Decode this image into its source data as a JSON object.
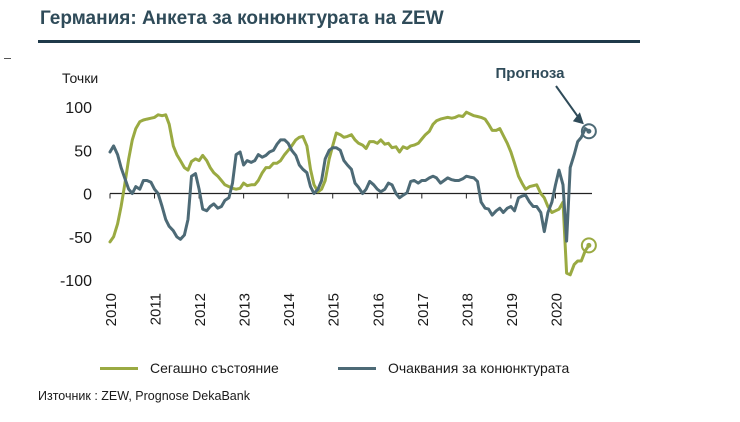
{
  "title": "Германия: Анкета за конюнктурата на ZEW",
  "source": "Източник : ZEW, Prognose DekaBank",
  "colors": {
    "current": "#9aaa42",
    "expectations": "#4d6a76",
    "title": "#2f4b59",
    "rule": "#1f3a4a"
  },
  "chart_data": {
    "type": "line",
    "ylabel": "Точки",
    "ylim": [
      -100,
      100
    ],
    "yticks": [
      100,
      50,
      0,
      -50,
      -100
    ],
    "ytick_labels": [
      "100",
      "50",
      "0",
      "-50",
      "-100"
    ],
    "xlim": [
      2010,
      2021
    ],
    "xticks": [
      2010,
      2011,
      2012,
      2013,
      2014,
      2015,
      2016,
      2017,
      2018,
      2019,
      2020
    ],
    "xtick_labels": [
      "2010",
      "2011",
      "2012",
      "2013",
      "2014",
      "2015",
      "2016",
      "2017",
      "2018",
      "2019",
      "2020"
    ],
    "annotation": "Прогноза",
    "legend": [
      "Сегашно състояние",
      "Очаквания за конюнктурата"
    ],
    "series": [
      {
        "name": "Сегашно състояние",
        "color": "#9aaa42",
        "x": [
          2010.0,
          2010.08,
          2010.17,
          2010.25,
          2010.33,
          2010.42,
          2010.5,
          2010.58,
          2010.67,
          2010.75,
          2010.83,
          2010.92,
          2011.0,
          2011.08,
          2011.17,
          2011.25,
          2011.33,
          2011.42,
          2011.5,
          2011.58,
          2011.67,
          2011.75,
          2011.83,
          2011.92,
          2012.0,
          2012.08,
          2012.17,
          2012.25,
          2012.33,
          2012.42,
          2012.5,
          2012.58,
          2012.67,
          2012.75,
          2012.83,
          2012.92,
          2013.0,
          2013.08,
          2013.17,
          2013.25,
          2013.33,
          2013.42,
          2013.5,
          2013.58,
          2013.67,
          2013.75,
          2013.83,
          2013.92,
          2014.0,
          2014.08,
          2014.17,
          2014.25,
          2014.33,
          2014.42,
          2014.5,
          2014.58,
          2014.67,
          2014.75,
          2014.83,
          2014.92,
          2015.0,
          2015.08,
          2015.17,
          2015.25,
          2015.33,
          2015.42,
          2015.5,
          2015.58,
          2015.67,
          2015.75,
          2015.83,
          2015.92,
          2016.0,
          2016.08,
          2016.17,
          2016.25,
          2016.33,
          2016.42,
          2016.5,
          2016.58,
          2016.67,
          2016.75,
          2016.83,
          2016.92,
          2017.0,
          2017.08,
          2017.17,
          2017.25,
          2017.33,
          2017.42,
          2017.5,
          2017.58,
          2017.67,
          2017.75,
          2017.83,
          2017.92,
          2018.0,
          2018.08,
          2018.17,
          2018.25,
          2018.33,
          2018.42,
          2018.5,
          2018.58,
          2018.67,
          2018.75,
          2018.83,
          2018.92,
          2019.0,
          2019.08,
          2019.17,
          2019.25,
          2019.33,
          2019.42,
          2019.5,
          2019.58,
          2019.67,
          2019.75,
          2019.83,
          2019.92,
          2020.0,
          2020.08,
          2020.17,
          2020.25,
          2020.33,
          2020.42,
          2020.5,
          2020.58,
          2020.67,
          2020.75
        ],
        "values": [
          -56,
          -50,
          -35,
          -15,
          10,
          40,
          62,
          75,
          83,
          85,
          86,
          87,
          88,
          91,
          90,
          91,
          80,
          55,
          45,
          38,
          30,
          27,
          37,
          40,
          38,
          44,
          38,
          30,
          24,
          20,
          15,
          10,
          8,
          6,
          5,
          6,
          12,
          9,
          10,
          10,
          15,
          24,
          30,
          30,
          35,
          35,
          38,
          45,
          50,
          55,
          62,
          65,
          66,
          55,
          28,
          10,
          2,
          5,
          15,
          40,
          55,
          70,
          68,
          65,
          66,
          68,
          62,
          58,
          56,
          52,
          60,
          60,
          58,
          62,
          57,
          58,
          53,
          54,
          48,
          54,
          52,
          55,
          56,
          58,
          63,
          68,
          72,
          80,
          84,
          86,
          87,
          88,
          87,
          88,
          90,
          89,
          94,
          92,
          90,
          89,
          88,
          86,
          80,
          73,
          73,
          75,
          67,
          58,
          48,
          35,
          20,
          12,
          5,
          8,
          9,
          10,
          0,
          -5,
          -15,
          -22,
          -20,
          -18,
          -10,
          -92,
          -94,
          -82,
          -78,
          -78,
          -66,
          -60
        ]
      },
      {
        "name": "Очаквания за конюнктурата",
        "color": "#4d6a76",
        "x": [
          2010.0,
          2010.08,
          2010.17,
          2010.25,
          2010.33,
          2010.42,
          2010.5,
          2010.58,
          2010.67,
          2010.75,
          2010.83,
          2010.92,
          2011.0,
          2011.08,
          2011.17,
          2011.25,
          2011.33,
          2011.42,
          2011.5,
          2011.58,
          2011.67,
          2011.75,
          2011.83,
          2011.92,
          2012.0,
          2012.08,
          2012.17,
          2012.25,
          2012.33,
          2012.42,
          2012.5,
          2012.58,
          2012.67,
          2012.75,
          2012.83,
          2012.92,
          2013.0,
          2013.08,
          2013.17,
          2013.25,
          2013.33,
          2013.42,
          2013.5,
          2013.58,
          2013.67,
          2013.75,
          2013.83,
          2013.92,
          2014.0,
          2014.08,
          2014.17,
          2014.25,
          2014.33,
          2014.42,
          2014.5,
          2014.58,
          2014.67,
          2014.75,
          2014.83,
          2014.92,
          2015.0,
          2015.08,
          2015.17,
          2015.25,
          2015.33,
          2015.42,
          2015.5,
          2015.58,
          2015.67,
          2015.75,
          2015.83,
          2015.92,
          2016.0,
          2016.08,
          2016.17,
          2016.25,
          2016.33,
          2016.42,
          2016.5,
          2016.58,
          2016.67,
          2016.75,
          2016.83,
          2016.92,
          2017.0,
          2017.08,
          2017.17,
          2017.25,
          2017.33,
          2017.42,
          2017.5,
          2017.58,
          2017.67,
          2017.75,
          2017.83,
          2017.92,
          2018.0,
          2018.08,
          2018.17,
          2018.25,
          2018.33,
          2018.42,
          2018.5,
          2018.58,
          2018.67,
          2018.75,
          2018.83,
          2018.92,
          2019.0,
          2019.08,
          2019.17,
          2019.25,
          2019.33,
          2019.42,
          2019.5,
          2019.58,
          2019.67,
          2019.75,
          2019.83,
          2019.92,
          2020.0,
          2020.08,
          2020.17,
          2020.25,
          2020.33,
          2020.42,
          2020.5,
          2020.58,
          2020.67,
          2020.75
        ],
        "values": [
          48,
          55,
          45,
          30,
          18,
          5,
          0,
          8,
          5,
          15,
          15,
          13,
          5,
          0,
          -15,
          -30,
          -38,
          -43,
          -50,
          -53,
          -48,
          -30,
          20,
          23,
          5,
          -18,
          -20,
          -15,
          -12,
          -17,
          -15,
          -8,
          -5,
          12,
          45,
          48,
          33,
          38,
          36,
          38,
          45,
          42,
          44,
          48,
          50,
          57,
          62,
          62,
          58,
          50,
          44,
          33,
          28,
          24,
          8,
          0,
          5,
          15,
          40,
          50,
          53,
          53,
          50,
          38,
          33,
          28,
          12,
          7,
          0,
          5,
          14,
          10,
          5,
          2,
          5,
          12,
          10,
          0,
          -5,
          -2,
          1,
          14,
          15,
          12,
          15,
          15,
          18,
          20,
          18,
          12,
          15,
          18,
          16,
          15,
          15,
          17,
          20,
          19,
          18,
          14,
          -10,
          -17,
          -18,
          -25,
          -20,
          -17,
          -22,
          -17,
          -15,
          -20,
          -5,
          -3,
          -2,
          -10,
          -15,
          -15,
          -22,
          -44,
          -22,
          -10,
          10,
          27,
          10,
          -55,
          30,
          45,
          60,
          65,
          75,
          72
        ]
      }
    ]
  }
}
